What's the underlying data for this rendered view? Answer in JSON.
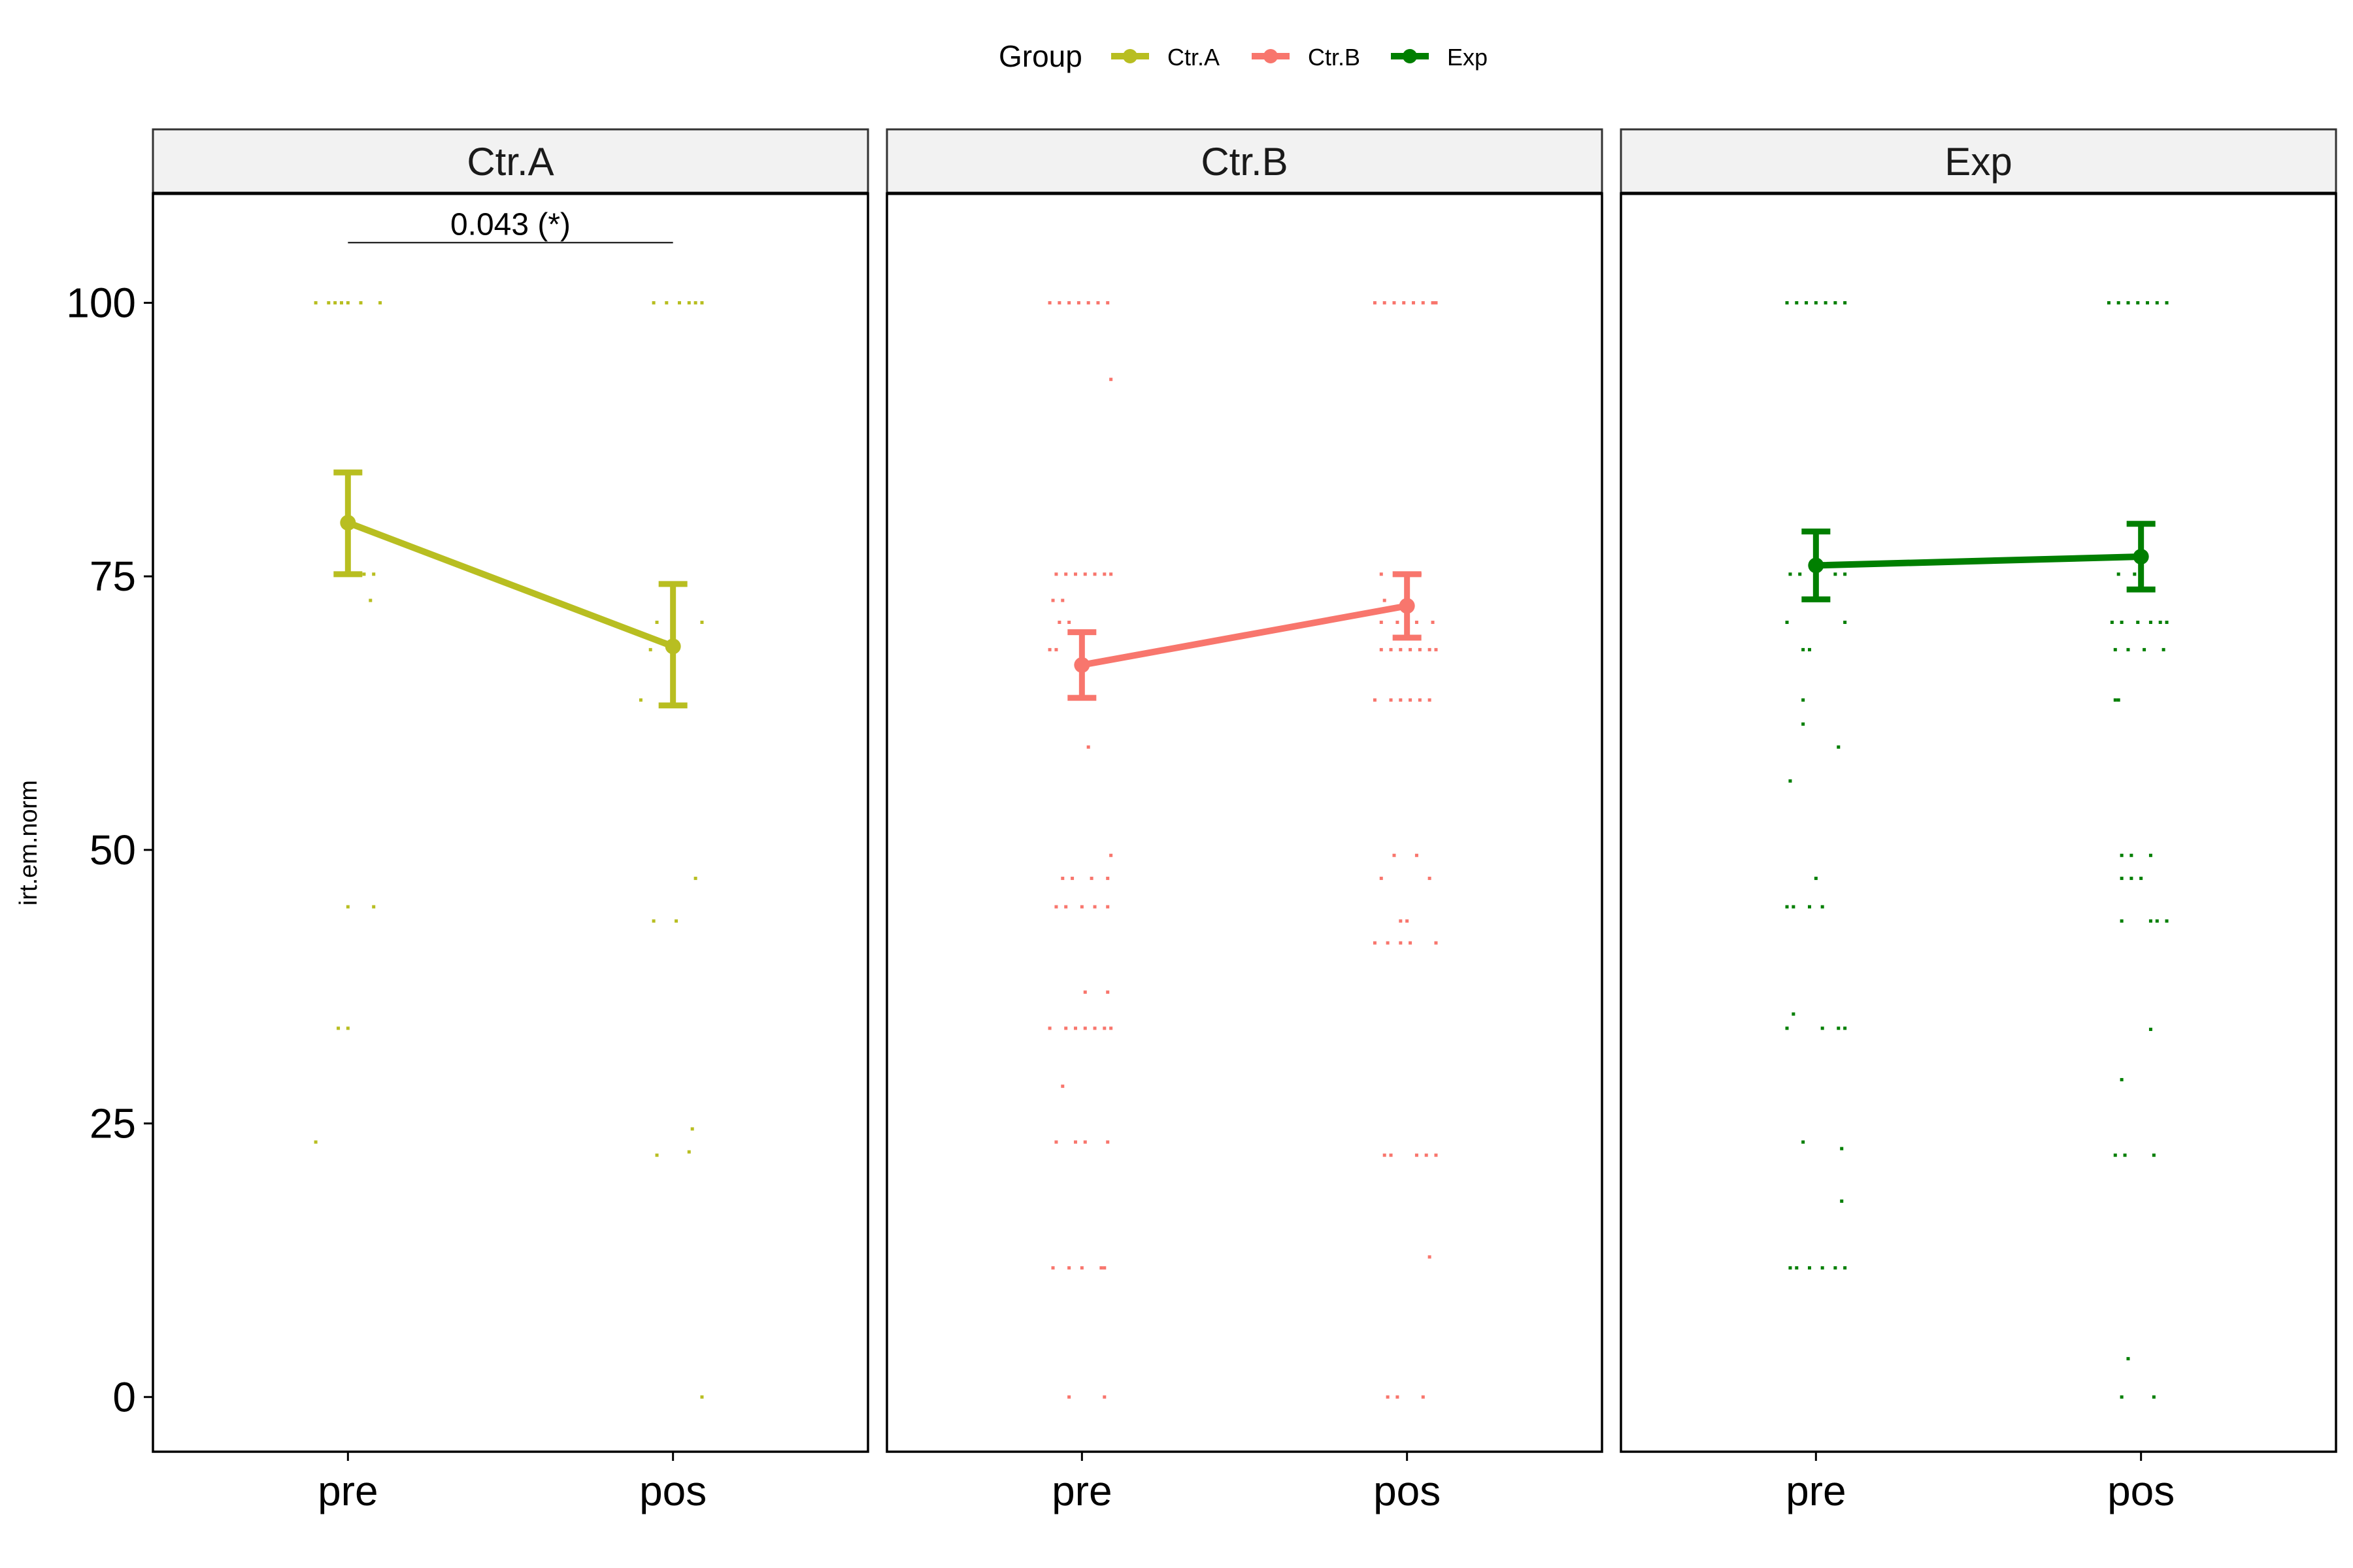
{
  "legend": {
    "title": "Group",
    "position": "top",
    "items": [
      {
        "label": "Ctr.A",
        "color": "#B8BE21"
      },
      {
        "label": "Ctr.B",
        "color": "#F8766D"
      },
      {
        "label": "Exp",
        "color": "#007F00"
      }
    ]
  },
  "chart_data": {
    "type": "line",
    "ylabel": "irt.em.norm",
    "xlabel": "",
    "categories": [
      "pre",
      "pos"
    ],
    "y_ticks": [
      0,
      25,
      50,
      75,
      100
    ],
    "ylim": [
      -5,
      110
    ],
    "grid": false,
    "panels": [
      {
        "title": "Ctr.A",
        "color": "#B8BE21",
        "mean": [
          79.9,
          68.6
        ],
        "err_low": [
          75.2,
          63.2
        ],
        "err_high": [
          84.5,
          74.3
        ],
        "annotation": {
          "text": "0.043 (*)",
          "from": "pre",
          "to": "pos",
          "y": 105.5
        },
        "points": {
          "pre": [
            [
              -0.1,
              100
            ],
            [
              -0.06,
              100
            ],
            [
              -0.04,
              100
            ],
            [
              -0.02,
              100
            ],
            [
              0.0,
              100
            ],
            [
              0.04,
              100
            ],
            [
              0.1,
              100
            ],
            [
              0.05,
              75.2
            ],
            [
              0.08,
              75.2
            ],
            [
              0.07,
              72.8
            ],
            [
              0.0,
              44.8
            ],
            [
              0.08,
              44.8
            ],
            [
              -0.03,
              33.7
            ],
            [
              0.0,
              33.7
            ],
            [
              -0.1,
              23.3
            ]
          ],
          "pos": [
            [
              -0.06,
              100
            ],
            [
              -0.02,
              100
            ],
            [
              0.02,
              100
            ],
            [
              0.05,
              100
            ],
            [
              0.07,
              100
            ],
            [
              0.09,
              100
            ],
            [
              -0.05,
              70.8
            ],
            [
              0.09,
              70.8
            ],
            [
              -0.07,
              68.3
            ],
            [
              -0.1,
              63.7
            ],
            [
              0.07,
              47.4
            ],
            [
              -0.06,
              43.5
            ],
            [
              0.01,
              43.5
            ],
            [
              0.06,
              24.5
            ],
            [
              0.05,
              22.4
            ],
            [
              -0.05,
              22.1
            ],
            [
              0.09,
              0
            ]
          ]
        }
      },
      {
        "title": "Ctr.B",
        "color": "#F8766D",
        "mean": [
          66.9,
          72.3
        ],
        "err_low": [
          63.9,
          69.4
        ],
        "err_high": [
          69.9,
          75.2
        ],
        "points": {
          "pre": [
            [
              -0.1,
              100
            ],
            [
              -0.07,
              100
            ],
            [
              -0.04,
              100
            ],
            [
              -0.01,
              100
            ],
            [
              0.02,
              100
            ],
            [
              0.05,
              100
            ],
            [
              0.08,
              100
            ],
            [
              0.09,
              93.0
            ],
            [
              -0.08,
              75.2
            ],
            [
              -0.05,
              75.2
            ],
            [
              -0.02,
              75.2
            ],
            [
              0.01,
              75.2
            ],
            [
              0.04,
              75.2
            ],
            [
              0.07,
              75.2
            ],
            [
              0.09,
              75.2
            ],
            [
              -0.09,
              72.8
            ],
            [
              -0.06,
              72.8
            ],
            [
              -0.07,
              70.8
            ],
            [
              -0.04,
              70.8
            ],
            [
              -0.1,
              68.3
            ],
            [
              -0.08,
              68.3
            ],
            [
              0.02,
              59.4
            ],
            [
              0.09,
              49.5
            ],
            [
              -0.06,
              47.4
            ],
            [
              -0.03,
              47.4
            ],
            [
              0.03,
              47.4
            ],
            [
              0.08,
              47.4
            ],
            [
              -0.08,
              44.8
            ],
            [
              -0.05,
              44.8
            ],
            [
              0.0,
              44.8
            ],
            [
              0.04,
              44.8
            ],
            [
              0.08,
              44.8
            ],
            [
              0.01,
              37.0
            ],
            [
              0.08,
              37.0
            ],
            [
              -0.1,
              33.7
            ],
            [
              -0.05,
              33.7
            ],
            [
              -0.02,
              33.7
            ],
            [
              0.01,
              33.7
            ],
            [
              0.04,
              33.7
            ],
            [
              0.07,
              33.7
            ],
            [
              0.09,
              33.7
            ],
            [
              -0.06,
              28.4
            ],
            [
              -0.08,
              23.3
            ],
            [
              -0.02,
              23.3
            ],
            [
              0.01,
              23.3
            ],
            [
              0.08,
              23.3
            ],
            [
              -0.09,
              11.8
            ],
            [
              -0.04,
              11.8
            ],
            [
              0.0,
              11.8
            ],
            [
              0.06,
              11.8
            ],
            [
              0.07,
              11.8
            ],
            [
              -0.04,
              0
            ],
            [
              0.07,
              0
            ]
          ],
          "pos": [
            [
              -0.1,
              100
            ],
            [
              -0.07,
              100
            ],
            [
              -0.04,
              100
            ],
            [
              -0.01,
              100
            ],
            [
              0.02,
              100
            ],
            [
              0.05,
              100
            ],
            [
              0.08,
              100
            ],
            [
              0.09,
              100
            ],
            [
              -0.08,
              75.2
            ],
            [
              -0.03,
              75.2
            ],
            [
              0.04,
              75.2
            ],
            [
              -0.07,
              72.8
            ],
            [
              -0.08,
              70.8
            ],
            [
              -0.03,
              70.8
            ],
            [
              0.03,
              70.8
            ],
            [
              0.08,
              70.8
            ],
            [
              -0.08,
              68.3
            ],
            [
              -0.05,
              68.3
            ],
            [
              -0.02,
              68.3
            ],
            [
              0.01,
              68.3
            ],
            [
              0.04,
              68.3
            ],
            [
              0.07,
              68.3
            ],
            [
              0.09,
              68.3
            ],
            [
              -0.1,
              63.7
            ],
            [
              -0.05,
              63.7
            ],
            [
              -0.02,
              63.7
            ],
            [
              0.01,
              63.7
            ],
            [
              0.04,
              63.7
            ],
            [
              0.07,
              63.7
            ],
            [
              -0.04,
              49.5
            ],
            [
              0.03,
              49.5
            ],
            [
              -0.08,
              47.4
            ],
            [
              0.07,
              47.4
            ],
            [
              -0.02,
              43.5
            ],
            [
              0.0,
              43.5
            ],
            [
              -0.1,
              41.5
            ],
            [
              -0.06,
              41.5
            ],
            [
              -0.02,
              41.5
            ],
            [
              0.01,
              41.5
            ],
            [
              0.09,
              41.5
            ],
            [
              -0.07,
              22.1
            ],
            [
              -0.05,
              22.1
            ],
            [
              0.03,
              22.1
            ],
            [
              0.06,
              22.1
            ],
            [
              0.09,
              22.1
            ],
            [
              0.07,
              12.8
            ],
            [
              -0.06,
              0
            ],
            [
              -0.03,
              0
            ],
            [
              0.05,
              0
            ]
          ]
        }
      },
      {
        "title": "Exp",
        "color": "#007F00",
        "mean": [
          76.0,
          76.8
        ],
        "err_low": [
          72.9,
          73.8
        ],
        "err_high": [
          79.1,
          79.8
        ],
        "points": {
          "pre": [
            [
              -0.09,
              100
            ],
            [
              -0.06,
              100
            ],
            [
              -0.03,
              100
            ],
            [
              0.0,
              100
            ],
            [
              0.03,
              100
            ],
            [
              0.06,
              100
            ],
            [
              0.09,
              100
            ],
            [
              -0.08,
              75.2
            ],
            [
              -0.05,
              75.2
            ],
            [
              0.06,
              75.2
            ],
            [
              0.09,
              75.2
            ],
            [
              -0.09,
              70.8
            ],
            [
              0.09,
              70.8
            ],
            [
              -0.04,
              68.3
            ],
            [
              -0.02,
              68.3
            ],
            [
              -0.04,
              63.7
            ],
            [
              -0.04,
              61.5
            ],
            [
              0.07,
              59.4
            ],
            [
              -0.08,
              56.3
            ],
            [
              0.0,
              47.4
            ],
            [
              -0.07,
              44.8
            ],
            [
              -0.09,
              44.8
            ],
            [
              -0.02,
              44.8
            ],
            [
              0.02,
              44.8
            ],
            [
              -0.07,
              35.0
            ],
            [
              -0.09,
              33.7
            ],
            [
              0.02,
              33.7
            ],
            [
              0.07,
              33.7
            ],
            [
              0.09,
              33.7
            ],
            [
              -0.04,
              23.3
            ],
            [
              0.08,
              22.7
            ],
            [
              0.08,
              17.9
            ],
            [
              -0.08,
              11.8
            ],
            [
              -0.06,
              11.8
            ],
            [
              -0.02,
              11.8
            ],
            [
              0.02,
              11.8
            ],
            [
              0.06,
              11.8
            ],
            [
              0.09,
              11.8
            ]
          ],
          "pos": [
            [
              -0.1,
              100
            ],
            [
              -0.07,
              100
            ],
            [
              -0.04,
              100
            ],
            [
              -0.01,
              100
            ],
            [
              0.02,
              100
            ],
            [
              0.05,
              100
            ],
            [
              0.08,
              100
            ],
            [
              -0.07,
              75.2
            ],
            [
              -0.02,
              75.2
            ],
            [
              -0.09,
              70.8
            ],
            [
              -0.06,
              70.8
            ],
            [
              -0.01,
              70.8
            ],
            [
              0.03,
              70.8
            ],
            [
              0.06,
              70.8
            ],
            [
              0.08,
              70.8
            ],
            [
              -0.08,
              68.3
            ],
            [
              -0.04,
              68.3
            ],
            [
              0.01,
              68.3
            ],
            [
              0.07,
              68.3
            ],
            [
              -0.08,
              63.7
            ],
            [
              -0.07,
              63.7
            ],
            [
              -0.06,
              49.5
            ],
            [
              -0.03,
              49.5
            ],
            [
              0.03,
              49.5
            ],
            [
              -0.06,
              47.4
            ],
            [
              -0.03,
              47.4
            ],
            [
              0.0,
              47.4
            ],
            [
              -0.06,
              43.5
            ],
            [
              0.03,
              43.5
            ],
            [
              0.05,
              43.5
            ],
            [
              0.08,
              43.5
            ],
            [
              0.03,
              33.6
            ],
            [
              -0.06,
              29.0
            ],
            [
              -0.08,
              22.1
            ],
            [
              -0.05,
              22.1
            ],
            [
              0.04,
              22.1
            ],
            [
              -0.04,
              3.5
            ],
            [
              -0.06,
              0
            ],
            [
              0.04,
              0
            ]
          ]
        }
      }
    ]
  }
}
